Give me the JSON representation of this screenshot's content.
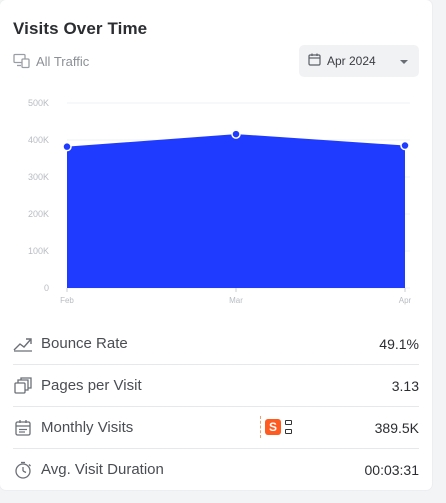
{
  "card": {
    "title": "Visits Over Time",
    "traffic_label": "All Traffic",
    "period_select": {
      "value": "Apr 2024",
      "icon": "calendar-icon"
    }
  },
  "chart_data": {
    "type": "area",
    "categories": [
      "Feb",
      "Mar",
      "Apr"
    ],
    "values": [
      382000,
      416000,
      385000
    ],
    "y_ticks": [
      "500K",
      "400K",
      "300K",
      "200K",
      "100K",
      "0"
    ],
    "ylim": [
      0,
      500000
    ],
    "color": "#1f3bff",
    "grid": true
  },
  "metrics": [
    {
      "label": "Bounce Rate",
      "value": "49.1%",
      "icon": "trend-icon"
    },
    {
      "label": "Pages per Visit",
      "value": "3.13",
      "icon": "pages-icon"
    },
    {
      "label": "Monthly Visits",
      "value": "389.5K",
      "icon": "calendar-icon"
    },
    {
      "label": "Avg. Visit Duration",
      "value": "00:03:31",
      "icon": "stopwatch-icon"
    }
  ],
  "extension_badge": {
    "letter": "S",
    "icon": "extension-icon"
  }
}
